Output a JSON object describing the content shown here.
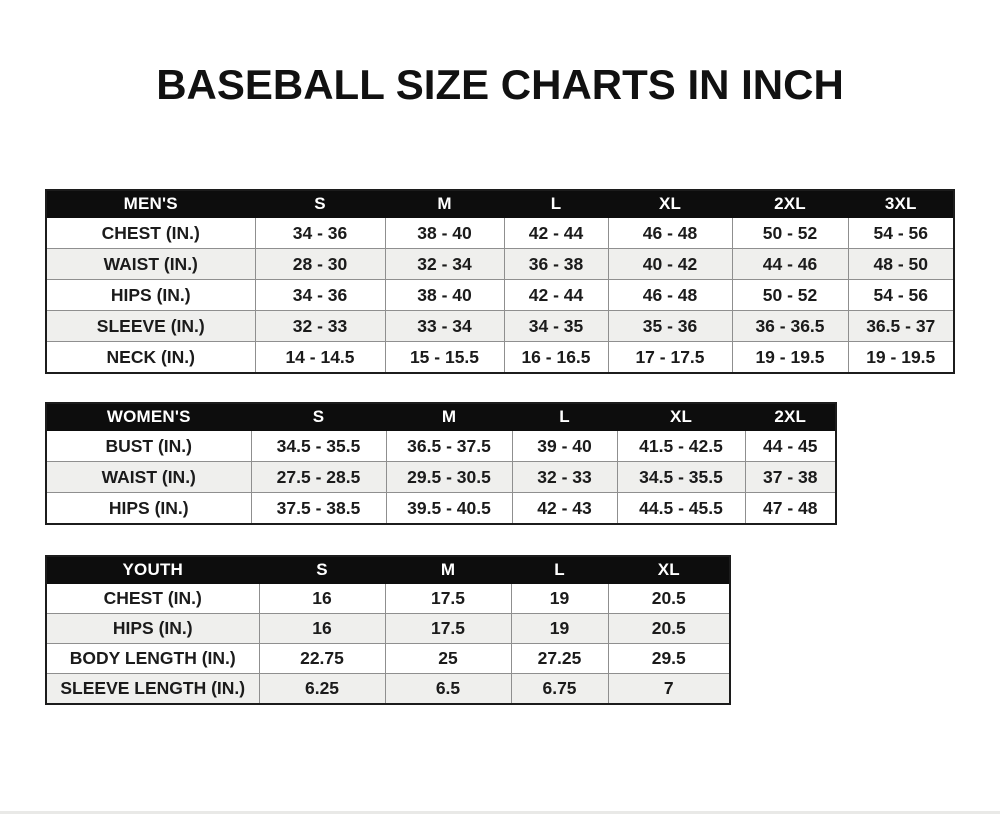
{
  "title": "BASEBALL SIZE CHARTS IN INCH",
  "colors": {
    "page_background": "#ffffff",
    "header_band": "#0d0d0d",
    "header_text": "#ffffff",
    "cell_text": "#1b1b1b",
    "alt_row_background": "#efefed",
    "outer_border": "#1c1c1c",
    "inner_border": "#8f8f8f"
  },
  "tables": [
    {
      "id": "mens",
      "header": [
        "MEN'S",
        "S",
        "M",
        "L",
        "XL",
        "2XL",
        "3XL"
      ],
      "rows": [
        {
          "label": "CHEST (IN.)",
          "values": [
            "34 - 36",
            "38 - 40",
            "42 - 44",
            "46 - 48",
            "50 - 52",
            "54 - 56"
          ]
        },
        {
          "label": "WAIST (IN.)",
          "values": [
            "28 - 30",
            "32 - 34",
            "36 - 38",
            "40 - 42",
            "44 - 46",
            "48 - 50"
          ]
        },
        {
          "label": "HIPS (IN.)",
          "values": [
            "34 - 36",
            "38 - 40",
            "42 - 44",
            "46 - 48",
            "50 - 52",
            "54 - 56"
          ]
        },
        {
          "label": "SLEEVE (IN.)",
          "values": [
            "32 - 33",
            "33 - 34",
            "34 - 35",
            "35 - 36",
            "36 - 36.5",
            "36.5 - 37"
          ]
        },
        {
          "label": "NECK (IN.)",
          "values": [
            "14 - 14.5",
            "15 - 15.5",
            "16 - 16.5",
            "17 - 17.5",
            "19 - 19.5",
            "19 - 19.5"
          ]
        }
      ]
    },
    {
      "id": "womens",
      "header": [
        "WOMEN'S",
        "S",
        "M",
        "L",
        "XL",
        "2XL"
      ],
      "rows": [
        {
          "label": "BUST (IN.)",
          "values": [
            "34.5 - 35.5",
            "36.5 - 37.5",
            "39 - 40",
            "41.5 - 42.5",
            "44 - 45"
          ]
        },
        {
          "label": "WAIST (IN.)",
          "values": [
            "27.5 - 28.5",
            "29.5 - 30.5",
            "32 - 33",
            "34.5 - 35.5",
            "37 - 38"
          ]
        },
        {
          "label": "HIPS (IN.)",
          "values": [
            "37.5 - 38.5",
            "39.5 - 40.5",
            "42 - 43",
            "44.5 - 45.5",
            "47 - 48"
          ]
        }
      ]
    },
    {
      "id": "youth",
      "header": [
        "YOUTH",
        "S",
        "M",
        "L",
        "XL"
      ],
      "rows": [
        {
          "label": "CHEST (IN.)",
          "values": [
            "16",
            "17.5",
            "19",
            "20.5"
          ]
        },
        {
          "label": "HIPS (IN.)",
          "values": [
            "16",
            "17.5",
            "19",
            "20.5"
          ]
        },
        {
          "label": "BODY LENGTH (IN.)",
          "values": [
            "22.75",
            "25",
            "27.25",
            "29.5"
          ]
        },
        {
          "label": "SLEEVE LENGTH (IN.)",
          "values": [
            "6.25",
            "6.5",
            "6.75",
            "7"
          ]
        }
      ]
    }
  ]
}
